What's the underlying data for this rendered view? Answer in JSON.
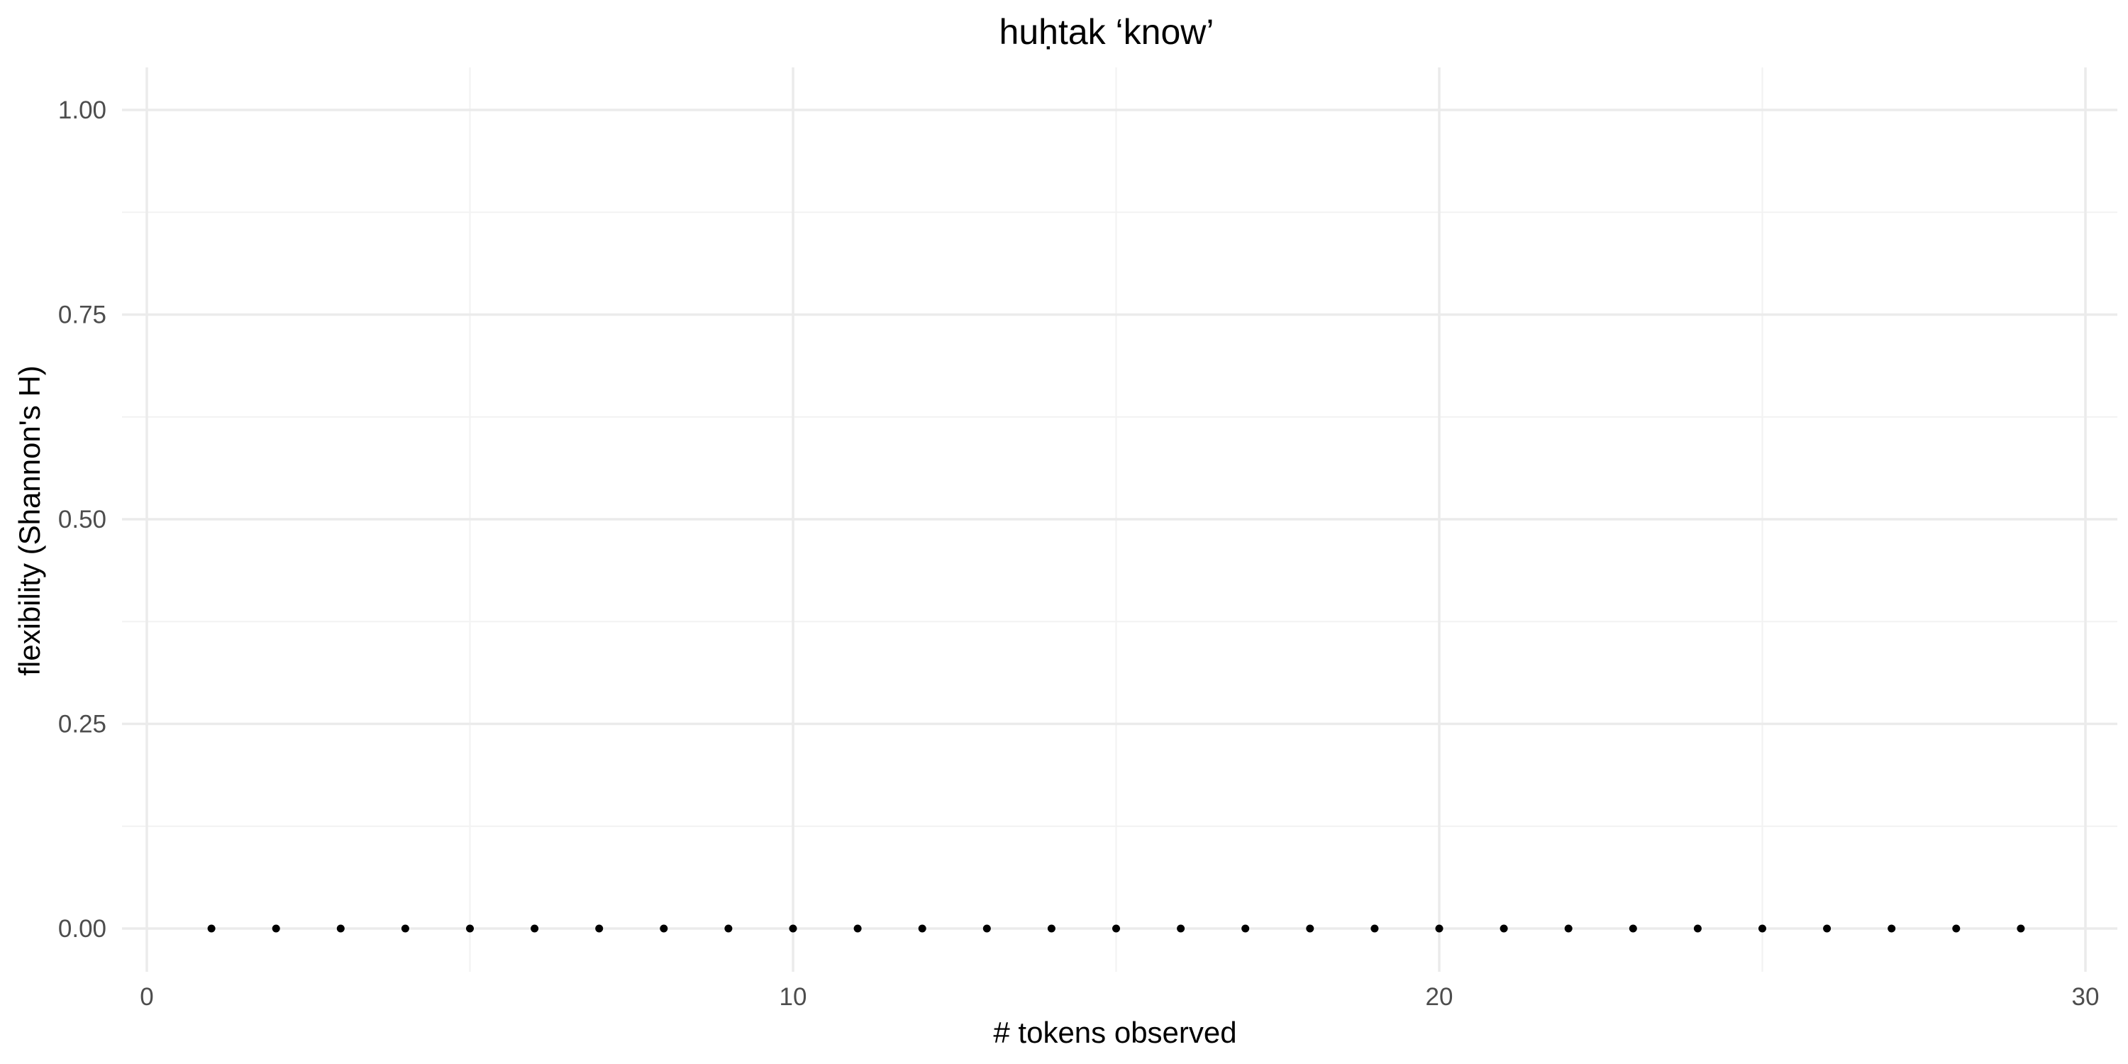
{
  "chart_data": {
    "type": "scatter",
    "title": "huḥtak ‘know’",
    "xlabel": "# tokens observed",
    "ylabel": "flexibility (Shannon's H)",
    "xlim": [
      0,
      30
    ],
    "ylim": [
      0,
      1
    ],
    "x_ticks": [
      0,
      10,
      20,
      30
    ],
    "y_ticks": [
      0.0,
      0.25,
      0.5,
      0.75,
      1.0
    ],
    "x_tick_labels": [
      "0",
      "10",
      "20",
      "30"
    ],
    "y_tick_labels": [
      "0.00",
      "0.25",
      "0.50",
      "0.75",
      "1.00"
    ],
    "grid": true,
    "points": [
      {
        "x": 1,
        "y": 0
      },
      {
        "x": 2,
        "y": 0
      },
      {
        "x": 3,
        "y": 0
      },
      {
        "x": 4,
        "y": 0
      },
      {
        "x": 5,
        "y": 0
      },
      {
        "x": 6,
        "y": 0
      },
      {
        "x": 7,
        "y": 0
      },
      {
        "x": 8,
        "y": 0
      },
      {
        "x": 9,
        "y": 0
      },
      {
        "x": 10,
        "y": 0
      },
      {
        "x": 11,
        "y": 0
      },
      {
        "x": 12,
        "y": 0
      },
      {
        "x": 13,
        "y": 0
      },
      {
        "x": 14,
        "y": 0
      },
      {
        "x": 15,
        "y": 0
      },
      {
        "x": 16,
        "y": 0
      },
      {
        "x": 17,
        "y": 0
      },
      {
        "x": 18,
        "y": 0
      },
      {
        "x": 19,
        "y": 0
      },
      {
        "x": 20,
        "y": 0
      },
      {
        "x": 21,
        "y": 0
      },
      {
        "x": 22,
        "y": 0
      },
      {
        "x": 23,
        "y": 0
      },
      {
        "x": 24,
        "y": 0
      },
      {
        "x": 25,
        "y": 0
      },
      {
        "x": 26,
        "y": 0
      },
      {
        "x": 27,
        "y": 0
      },
      {
        "x": 28,
        "y": 0
      },
      {
        "x": 29,
        "y": 0
      }
    ],
    "point_color": "#000000",
    "grid_color": "#ebebeb"
  }
}
